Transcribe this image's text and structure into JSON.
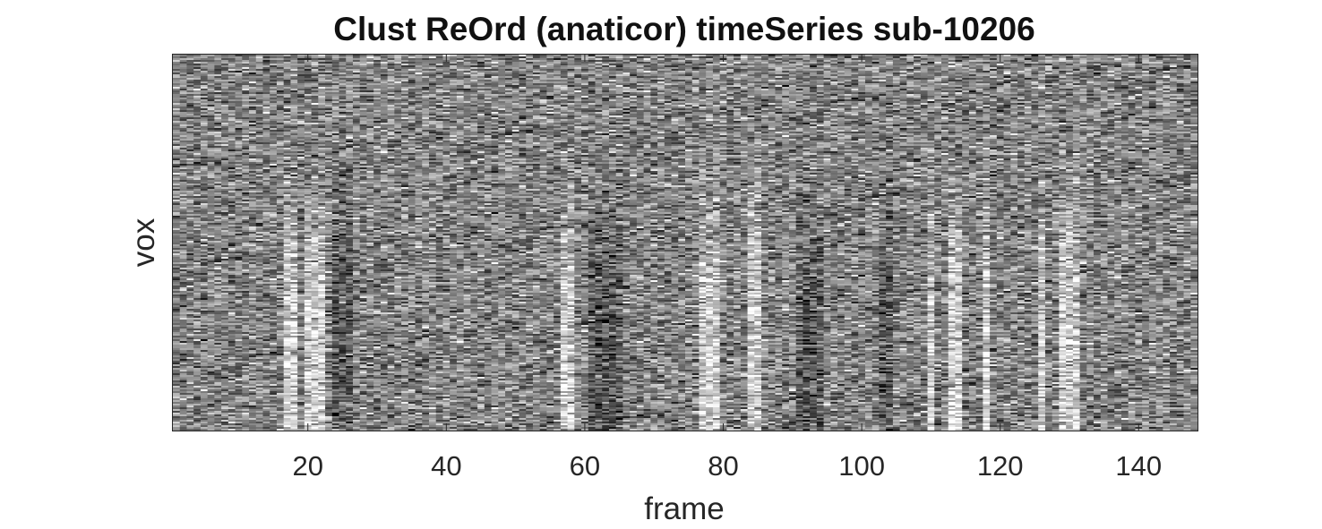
{
  "chart_data": {
    "type": "heatmap",
    "title": "Clust ReOrd (anaticor) timeSeries sub-10206",
    "xlabel": "frame",
    "ylabel": "vox",
    "xlim": [
      0.5,
      148.5
    ],
    "x_ticks": [
      20,
      40,
      60,
      80,
      100,
      120,
      140
    ],
    "x_tick_labels": [
      "20",
      "40",
      "60",
      "80",
      "100",
      "120",
      "140"
    ],
    "y_ticks": [],
    "colormap": "gray",
    "n_frames": 148,
    "bright_frames": [
      17,
      18,
      20,
      21,
      22,
      57,
      58,
      77,
      78,
      79,
      84,
      85,
      110,
      113,
      114,
      118,
      126,
      129,
      130,
      131
    ],
    "dark_frames": [
      24,
      25,
      26,
      61,
      62,
      63,
      64,
      65,
      91,
      92,
      93,
      94,
      103,
      104
    ]
  }
}
